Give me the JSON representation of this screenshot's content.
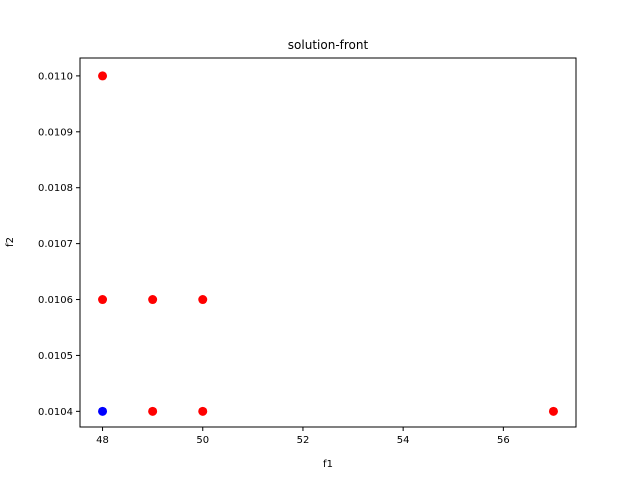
{
  "chart_data": {
    "type": "scatter",
    "title": "solution-front",
    "xlabel": "f1",
    "ylabel": "f2",
    "xlim": [
      47.55,
      57.45
    ],
    "ylim": [
      0.010372,
      0.011032
    ],
    "x_ticks": [
      48,
      50,
      52,
      54,
      56
    ],
    "x_tick_labels": [
      "48",
      "50",
      "52",
      "54",
      "56"
    ],
    "y_ticks": [
      0.0104,
      0.0105,
      0.0106,
      0.0107,
      0.0108,
      0.0109,
      0.011
    ],
    "y_tick_labels": [
      "0.0104",
      "0.0105",
      "0.0106",
      "0.0107",
      "0.0108",
      "0.0109",
      "0.0110"
    ],
    "grid": false,
    "series": [
      {
        "color": "#ff0000",
        "points": [
          {
            "x": 48,
            "y": 0.011
          },
          {
            "x": 48,
            "y": 0.0106
          },
          {
            "x": 49,
            "y": 0.0106
          },
          {
            "x": 50,
            "y": 0.0106
          },
          {
            "x": 49,
            "y": 0.0104
          },
          {
            "x": 50,
            "y": 0.0104
          },
          {
            "x": 57,
            "y": 0.0104
          }
        ]
      },
      {
        "color": "#0000ff",
        "points": [
          {
            "x": 48,
            "y": 0.0104
          }
        ]
      }
    ]
  }
}
